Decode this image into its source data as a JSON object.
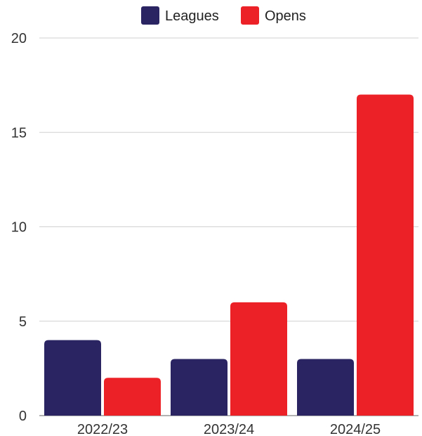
{
  "chart_data": {
    "type": "bar",
    "categories": [
      "2022/23",
      "2023/24",
      "2024/25"
    ],
    "series": [
      {
        "name": "Leagues",
        "values": [
          4,
          3,
          3
        ],
        "color": "#2a2462"
      },
      {
        "name": "Opens",
        "values": [
          2,
          6,
          17
        ],
        "color": "#ec2127"
      }
    ],
    "title": "",
    "xlabel": "",
    "ylabel": "",
    "ylim": [
      0,
      20
    ],
    "yticks": [
      0,
      5,
      10,
      15,
      20
    ],
    "grid": true,
    "legend_position": "top"
  }
}
